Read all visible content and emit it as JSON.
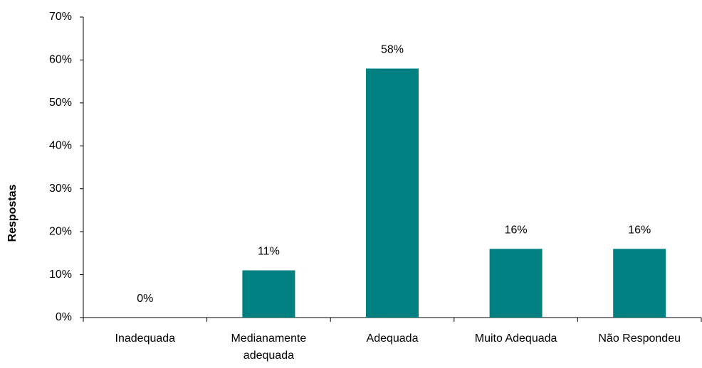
{
  "chart_data": {
    "type": "bar",
    "y_label": "Respostas",
    "categories": [
      "Inadequada",
      "Medianamente adequada",
      "Adequada",
      "Muito Adequada",
      "Não Respondeu"
    ],
    "values": [
      0,
      11,
      58,
      16,
      16
    ],
    "value_labels": [
      "0%",
      "11%",
      "58%",
      "16%",
      "16%"
    ],
    "color": "#008080",
    "ylim": [
      0,
      70
    ],
    "yticks": [
      {
        "value": 0,
        "label": "0%"
      },
      {
        "value": 10,
        "label": "10%"
      },
      {
        "value": 20,
        "label": "20%"
      },
      {
        "value": 30,
        "label": "30%"
      },
      {
        "value": 40,
        "label": "40%"
      },
      {
        "value": 50,
        "label": "50%"
      },
      {
        "value": 60,
        "label": "60%"
      },
      {
        "value": 70,
        "label": "70%"
      }
    ],
    "grid": false
  }
}
